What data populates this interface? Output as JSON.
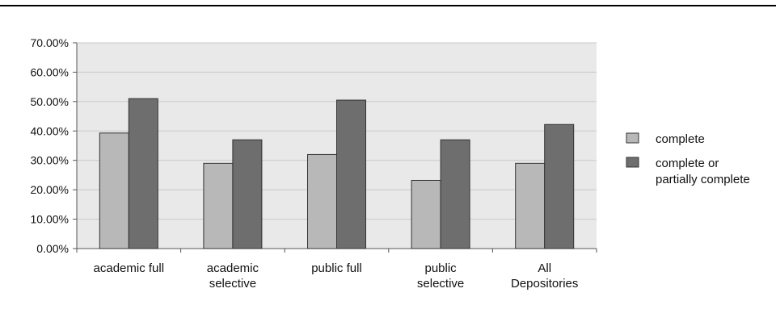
{
  "chart_data": {
    "type": "bar",
    "categories": [
      [
        "academic full"
      ],
      [
        "academic",
        "selective"
      ],
      [
        "public full"
      ],
      [
        "public",
        "selective"
      ],
      [
        "All",
        "Depositories"
      ]
    ],
    "series": [
      {
        "name": "complete",
        "values": [
          0.393,
          0.29,
          0.32,
          0.232,
          0.29
        ]
      },
      {
        "name": "complete or partially complete",
        "values": [
          0.51,
          0.37,
          0.505,
          0.37,
          0.422
        ]
      }
    ],
    "legend": [
      [
        "complete"
      ],
      [
        "complete or",
        "partially complete"
      ]
    ],
    "y_ticks": [
      "0.00%",
      "10.00%",
      "20.00%",
      "30.00%",
      "40.00%",
      "50.00%",
      "60.00%",
      "70.00%"
    ],
    "ylim": [
      0,
      0.7
    ],
    "grid": true,
    "legend_position": "right",
    "colors": {
      "complete": "#b8b8b8",
      "complete_or_partial": "#6e6e6e",
      "plot_background": "#e9e9e9",
      "gridline": "#c9c9c9",
      "top_rule": "#000000"
    }
  }
}
